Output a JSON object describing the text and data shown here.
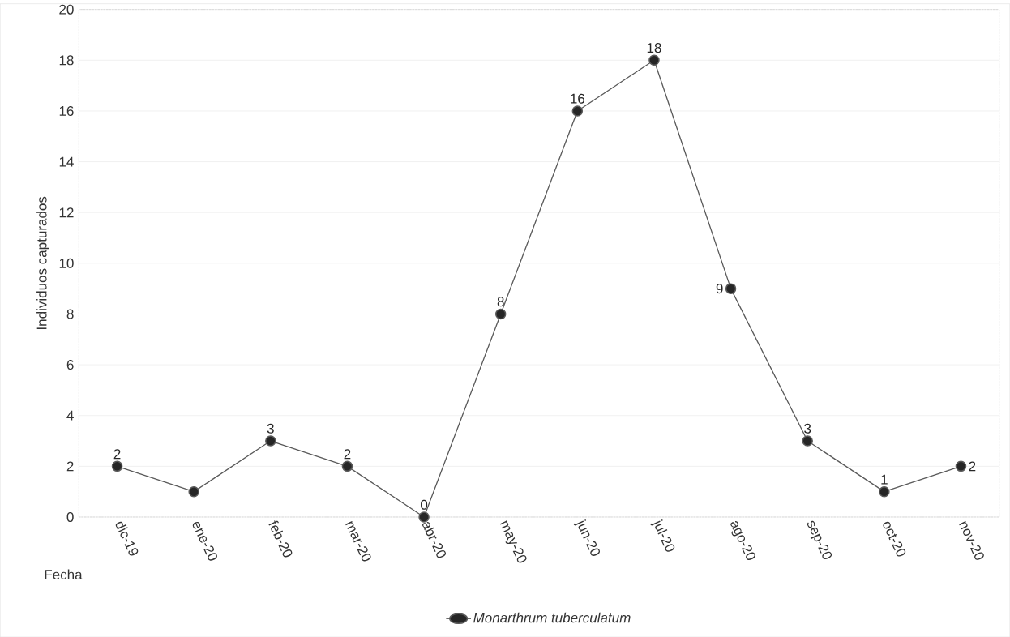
{
  "chart_data": {
    "type": "line",
    "xlabel": "Fecha",
    "ylabel": "Individuos capturados",
    "categories": [
      "dic-19",
      "ene-20",
      "feb-20",
      "mar-20",
      "abr-20",
      "may-20",
      "jun-20",
      "jul-20",
      "ago-20",
      "sep-20",
      "oct-20",
      "nov-20"
    ],
    "series": [
      {
        "name": "Monarthrum tuberculatum",
        "color": "#595959",
        "values": [
          2,
          1,
          3,
          2,
          0,
          8,
          16,
          18,
          9,
          3,
          1,
          2
        ],
        "value_labels": [
          "2",
          null,
          "3",
          "2",
          "0",
          "8",
          "16",
          "18",
          "9",
          "3",
          "1",
          "2"
        ]
      }
    ],
    "ylim": [
      0,
      20
    ],
    "yticks": [
      0,
      2,
      4,
      6,
      8,
      10,
      12,
      14,
      16,
      18,
      20
    ],
    "grid": "y",
    "legend": "bottom",
    "marker": "circle",
    "line_style": "solid"
  }
}
